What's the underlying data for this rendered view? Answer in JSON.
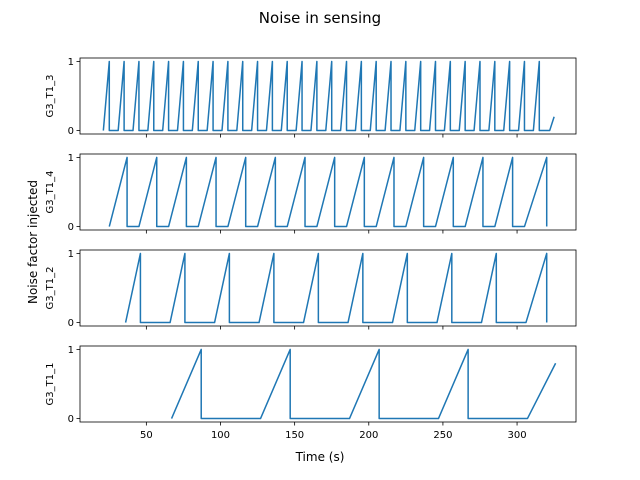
{
  "title": "Noise in sensing",
  "ylabel": "Noise factor injected",
  "xlabel": "Time (s)",
  "line_color": "#1f77b4",
  "x_axis": {
    "range": [
      5.25,
      339.75
    ],
    "ticks": [
      50,
      100,
      150,
      200,
      250,
      300
    ]
  },
  "chart_data": [
    {
      "type": "line",
      "subplot_label": "G3_T1_3",
      "ylim": [
        -0.05,
        1.05
      ],
      "yticks": [
        0,
        1
      ],
      "x": [
        21,
        25,
        25,
        31,
        35,
        35,
        41,
        45,
        45,
        51,
        55,
        55,
        61,
        65,
        65,
        71,
        75,
        75,
        81,
        85,
        85,
        91,
        95,
        95,
        101,
        105,
        105,
        111,
        115,
        115,
        121,
        125,
        125,
        131,
        135,
        135,
        141,
        145,
        145,
        151,
        155,
        155,
        161,
        165,
        165,
        171,
        175,
        175,
        181,
        185,
        185,
        191,
        195,
        195,
        201,
        205,
        205,
        211,
        215,
        215,
        221,
        225,
        225,
        231,
        235,
        235,
        241,
        245,
        245,
        251,
        255,
        255,
        261,
        265,
        265,
        271,
        275,
        275,
        281,
        285,
        285,
        291,
        295,
        295,
        301,
        305,
        305,
        311,
        315,
        315,
        322,
        325
      ],
      "y": [
        0,
        1,
        0,
        0,
        1,
        0,
        0,
        1,
        0,
        0,
        1,
        0,
        0,
        1,
        0,
        0,
        1,
        0,
        0,
        1,
        0,
        0,
        1,
        0,
        0,
        1,
        0,
        0,
        1,
        0,
        0,
        1,
        0,
        0,
        1,
        0,
        0,
        1,
        0,
        0,
        1,
        0,
        0,
        1,
        0,
        0,
        1,
        0,
        0,
        1,
        0,
        0,
        1,
        0,
        0,
        1,
        0,
        0,
        1,
        0,
        0,
        1,
        0,
        0,
        1,
        0,
        0,
        1,
        0,
        0,
        1,
        0,
        0,
        1,
        0,
        0,
        1,
        0,
        0,
        1,
        0,
        0,
        1,
        0,
        0,
        1,
        0,
        0,
        1,
        0,
        0,
        0.2
      ]
    },
    {
      "type": "line",
      "subplot_label": "G3_T1_4",
      "ylim": [
        -0.05,
        1.05
      ],
      "yticks": [
        0,
        1
      ],
      "x": [
        25,
        37,
        37,
        45,
        57,
        57,
        65,
        77,
        77,
        85,
        97,
        97,
        105,
        117,
        117,
        125,
        137,
        137,
        145,
        157,
        157,
        165,
        177,
        177,
        185,
        197,
        197,
        205,
        217,
        217,
        225,
        237,
        237,
        245,
        257,
        257,
        265,
        277,
        277,
        285,
        297,
        297,
        305,
        320,
        320
      ],
      "y": [
        0,
        1,
        0,
        0,
        1,
        0,
        0,
        1,
        0,
        0,
        1,
        0,
        0,
        1,
        0,
        0,
        1,
        0,
        0,
        1,
        0,
        0,
        1,
        0,
        0,
        1,
        0,
        0,
        1,
        0,
        0,
        1,
        0,
        0,
        1,
        0,
        0,
        1,
        0,
        0,
        1,
        0,
        0,
        1,
        0
      ]
    },
    {
      "type": "line",
      "subplot_label": "G3_T1_2",
      "ylim": [
        -0.05,
        1.05
      ],
      "yticks": [
        0,
        1
      ],
      "x": [
        36,
        46,
        46,
        66,
        76,
        76,
        96,
        106,
        106,
        126,
        136,
        136,
        156,
        166,
        166,
        186,
        196,
        196,
        216,
        226,
        226,
        246,
        256,
        256,
        276,
        286,
        286,
        306,
        320,
        320
      ],
      "y": [
        0,
        1,
        0,
        0,
        1,
        0,
        0,
        1,
        0,
        0,
        1,
        0,
        0,
        1,
        0,
        0,
        1,
        0,
        0,
        1,
        0,
        0,
        1,
        0,
        0,
        1,
        0,
        0,
        1,
        0
      ]
    },
    {
      "type": "line",
      "subplot_label": "G3_T1_1",
      "ylim": [
        -0.05,
        1.05
      ],
      "yticks": [
        0,
        1
      ],
      "x": [
        67,
        87,
        87,
        127,
        147,
        147,
        187,
        207,
        207,
        247,
        267,
        267,
        307,
        326
      ],
      "y": [
        0,
        1,
        0,
        0,
        1,
        0,
        0,
        1,
        0,
        0,
        1,
        0,
        0,
        0.8
      ]
    }
  ]
}
